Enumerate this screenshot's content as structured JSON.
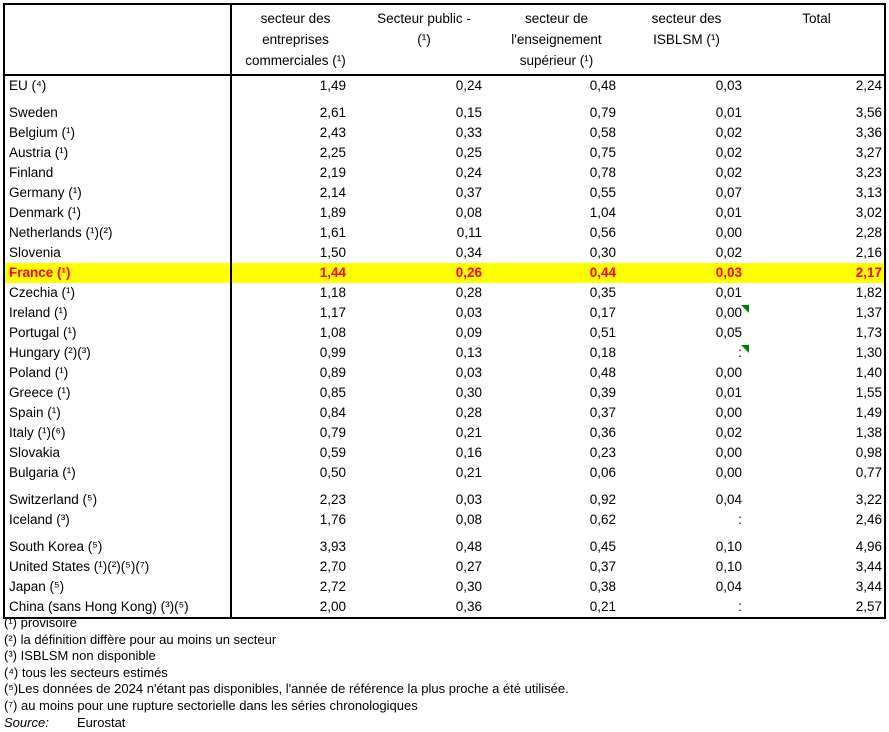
{
  "colors": {
    "page_bg": "#FFFFFF",
    "text": "#000000",
    "border": "#000000",
    "highlight_bg": "#FFFF00",
    "highlight_text": "#FF0000",
    "flag": "#008000"
  },
  "table": {
    "headers": [
      "",
      "secteur des\nentreprises\ncommerciales (¹)",
      "Secteur public -\n(¹)",
      "secteur de\nl'enseignement\nsupérieur (¹)",
      "secteur des\nISBLSM (¹)",
      "Total"
    ],
    "rows": [
      {
        "label": "EU (⁴)",
        "values": [
          "1,49",
          "0,24",
          "0,48",
          "0,03",
          "2,24"
        ],
        "gap_after": true
      },
      {
        "label": "Sweden",
        "values": [
          "2,61",
          "0,15",
          "0,79",
          "0,01",
          "3,56"
        ]
      },
      {
        "label": "Belgium (¹)",
        "values": [
          "2,43",
          "0,33",
          "0,58",
          "0,02",
          "3,36"
        ]
      },
      {
        "label": "Austria (¹)",
        "values": [
          "2,25",
          "0,25",
          "0,75",
          "0,02",
          "3,27"
        ]
      },
      {
        "label": "Finland",
        "values": [
          "2,19",
          "0,24",
          "0,78",
          "0,02",
          "3,23"
        ]
      },
      {
        "label": "Germany (¹)",
        "values": [
          "2,14",
          "0,37",
          "0,55",
          "0,07",
          "3,13"
        ]
      },
      {
        "label": "Denmark (¹)",
        "values": [
          "1,89",
          "0,08",
          "1,04",
          "0,01",
          "3,02"
        ]
      },
      {
        "label": "Netherlands (¹)(²)",
        "values": [
          "1,61",
          "0,11",
          "0,56",
          "0,00",
          "2,28"
        ]
      },
      {
        "label": "Slovenia",
        "values": [
          "1,50",
          "0,34",
          "0,30",
          "0,02",
          "2,16"
        ]
      },
      {
        "label": "France (¹)",
        "values": [
          "1,44",
          "0,26",
          "0,44",
          "0,03",
          "2,17"
        ],
        "highlight": true
      },
      {
        "label": "Czechia (¹)",
        "values": [
          "1,18",
          "0,28",
          "0,35",
          "0,01",
          "1,82"
        ]
      },
      {
        "label": "Ireland (¹)",
        "values": [
          "1,17",
          "0,03",
          "0,17",
          "0,00",
          "1,37"
        ],
        "flag_col": 3
      },
      {
        "label": "Portugal (¹)",
        "values": [
          "1,08",
          "0,09",
          "0,51",
          "0,05",
          "1,73"
        ]
      },
      {
        "label": "Hungary (²)(³)",
        "values": [
          "0,99",
          "0,13",
          "0,18",
          ":",
          "1,30"
        ],
        "flag_col": 3
      },
      {
        "label": "Poland (¹)",
        "values": [
          "0,89",
          "0,03",
          "0,48",
          "0,00",
          "1,40"
        ]
      },
      {
        "label": "Greece (¹)",
        "values": [
          "0,85",
          "0,30",
          "0,39",
          "0,01",
          "1,55"
        ]
      },
      {
        "label": "Spain (¹)",
        "values": [
          "0,84",
          "0,28",
          "0,37",
          "0,00",
          "1,49"
        ]
      },
      {
        "label": "Italy (¹)(⁶)",
        "values": [
          "0,79",
          "0,21",
          "0,36",
          "0,02",
          "1,38"
        ]
      },
      {
        "label": "Slovakia",
        "values": [
          "0,59",
          "0,16",
          "0,23",
          "0,00",
          "0,98"
        ]
      },
      {
        "label": "Bulgaria (¹)",
        "values": [
          "0,50",
          "0,21",
          "0,06",
          "0,00",
          "0,77"
        ],
        "gap_after": true
      },
      {
        "label": "Switzerland (⁵)",
        "values": [
          "2,23",
          "0,03",
          "0,92",
          "0,04",
          "3,22"
        ]
      },
      {
        "label": "Iceland (³)",
        "values": [
          "1,76",
          "0,08",
          "0,62",
          ":",
          "2,46"
        ],
        "gap_after": true
      },
      {
        "label": "South Korea (⁵)",
        "values": [
          "3,93",
          "0,48",
          "0,45",
          "0,10",
          "4,96"
        ]
      },
      {
        "label": "United States (¹)(²)(⁵)(⁷)",
        "values": [
          "2,70",
          "0,27",
          "0,37",
          "0,10",
          "3,44"
        ]
      },
      {
        "label": "Japan (⁵)",
        "values": [
          "2,72",
          "0,30",
          "0,38",
          "0,04",
          "3,44"
        ]
      },
      {
        "label": "China (sans Hong Kong) (³)(⁵)",
        "values": [
          "2,00",
          "0,36",
          "0,21",
          ":",
          "2,57"
        ]
      }
    ]
  },
  "footnotes": [
    "(¹) provisoire",
    "(²) la définition diffère pour au moins un secteur",
    "(³) ISBLSM non disponible",
    "(⁴) tous les secteurs estimés",
    "(⁵)Les données de 2024 n'étant pas disponibles, l'année de référence la plus proche a été utilisée.",
    "(⁷) au moins pour une rupture sectorielle dans les séries chronologiques"
  ],
  "source": {
    "label": "Source:",
    "value": "Eurostat"
  }
}
